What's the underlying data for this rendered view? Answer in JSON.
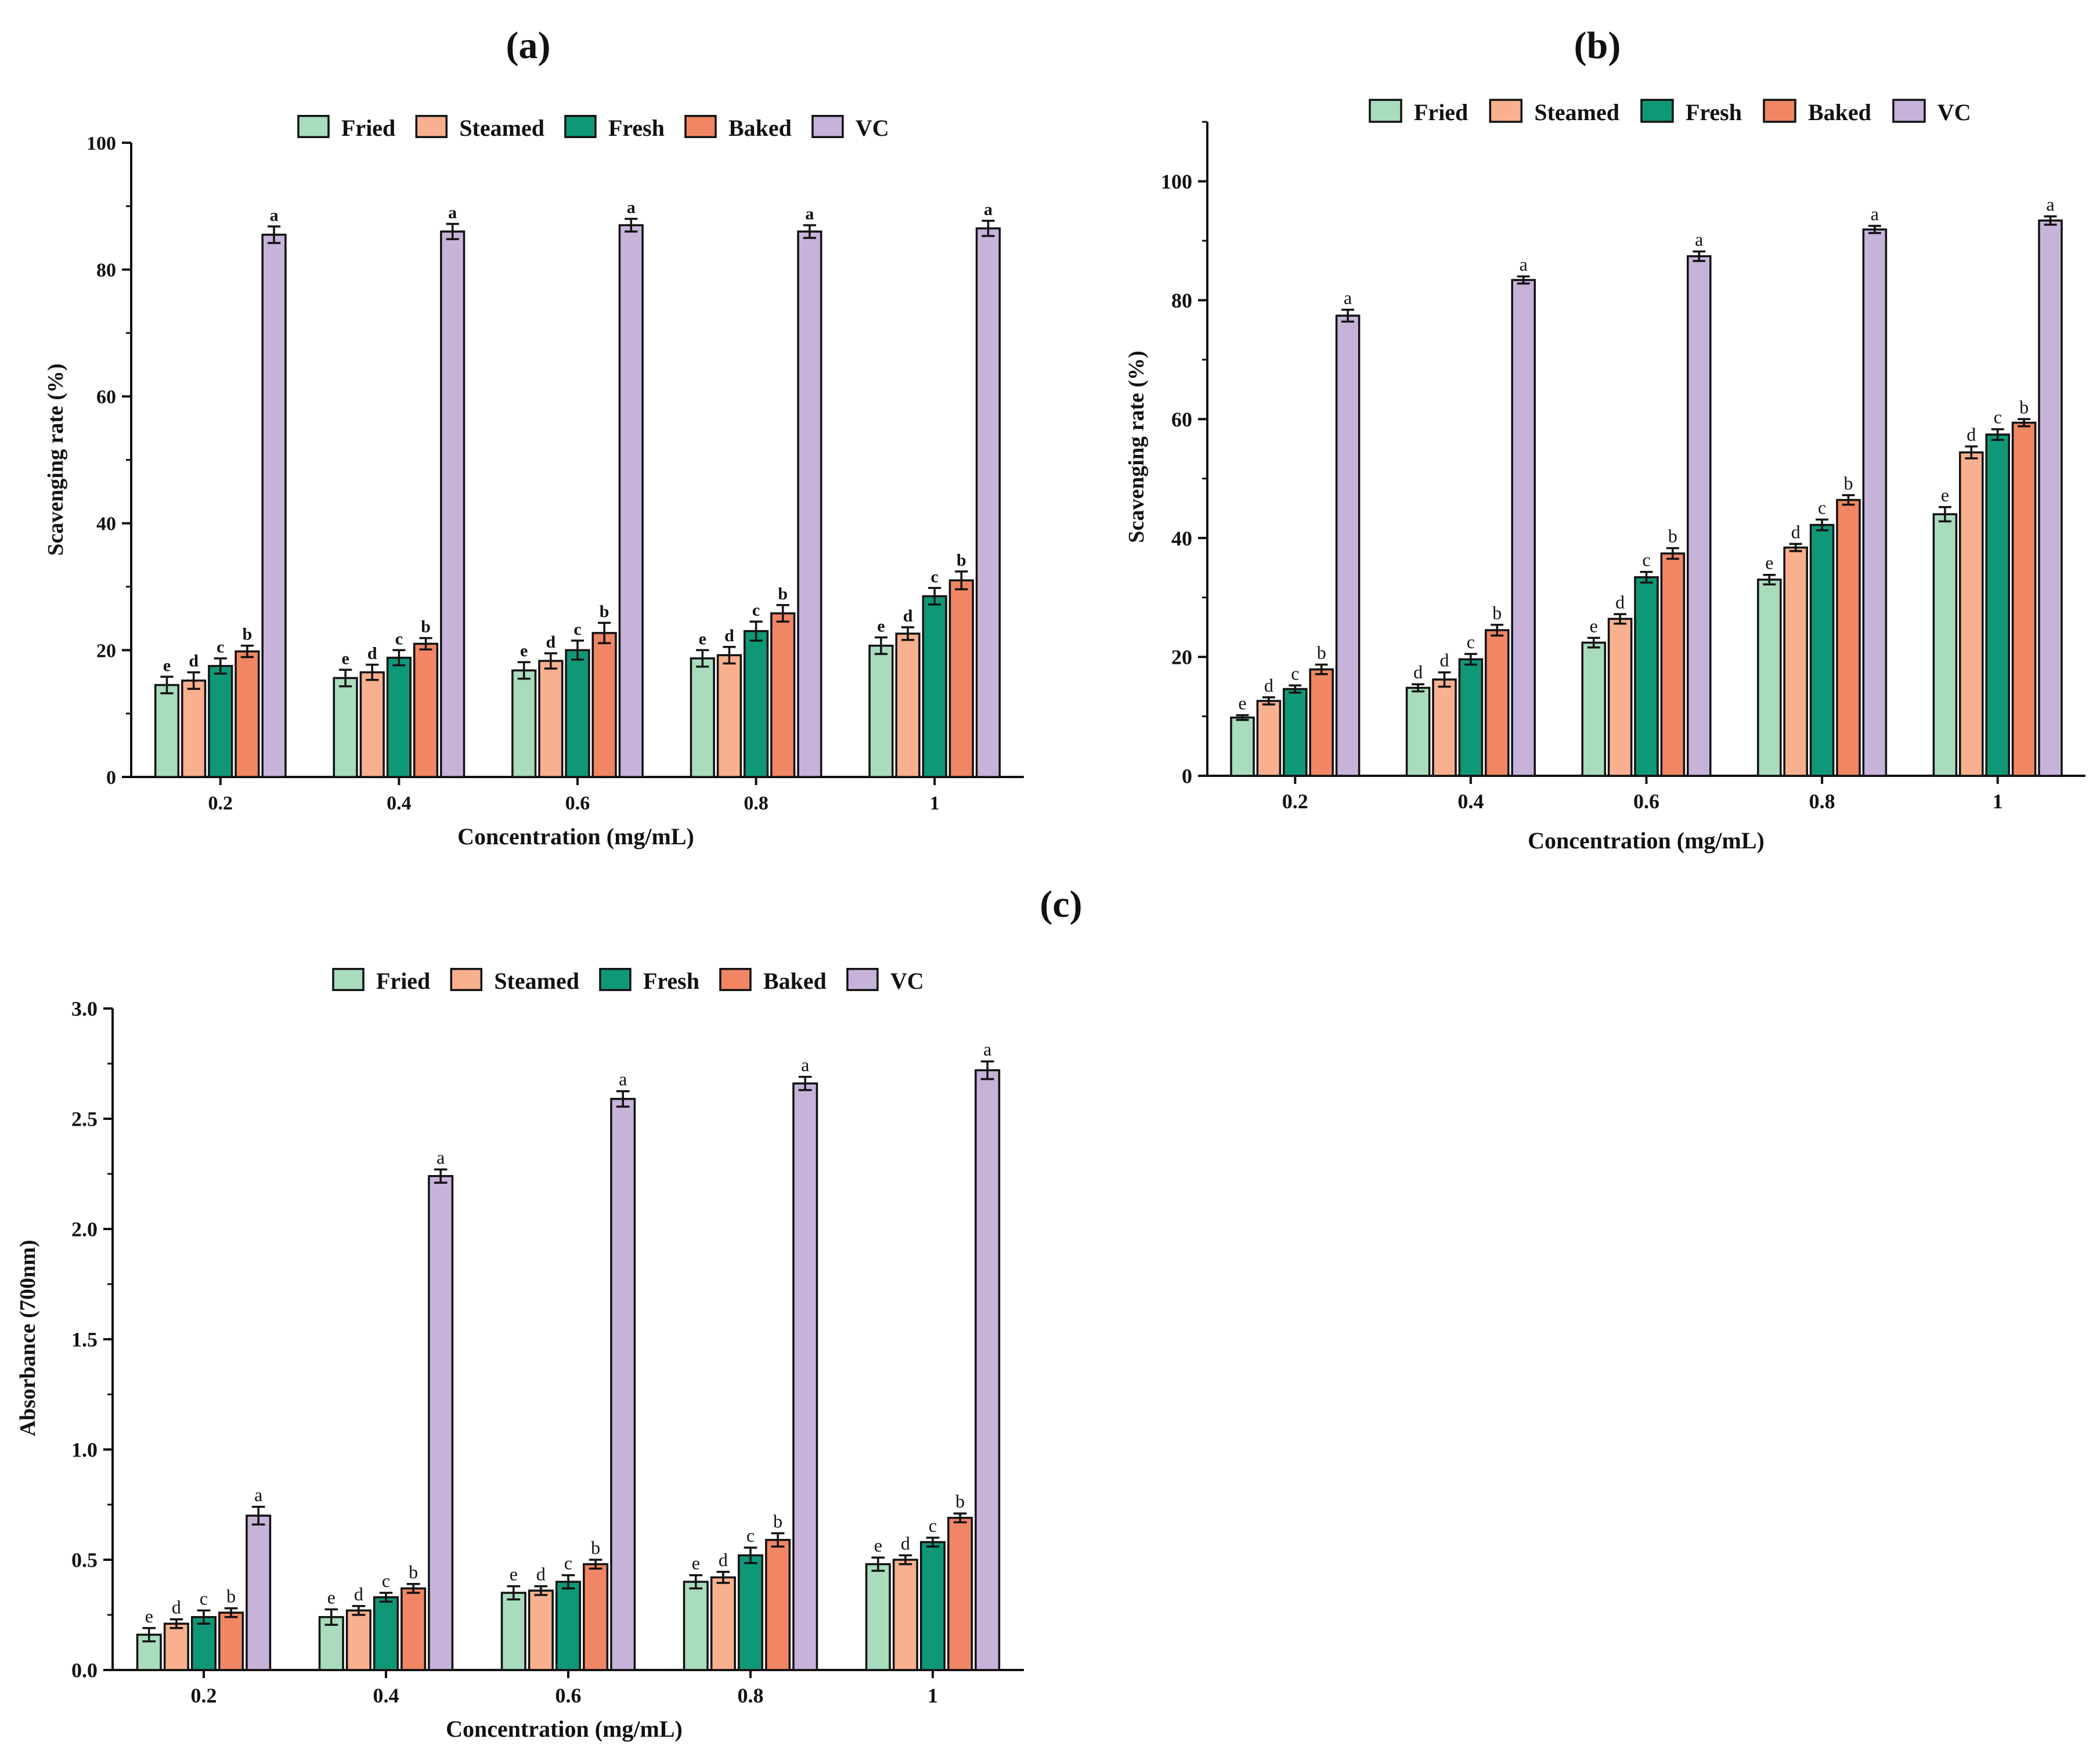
{
  "colors": {
    "Fried": "#a8dcbd",
    "Steamed": "#f9b08e",
    "Fresh": "#0f9878",
    "Baked": "#f08664",
    "VC": "#c7b3da"
  },
  "chart_data": [
    {
      "panel_label": "(a)",
      "type": "bar",
      "xlabel": "Concentration (mg/mL)",
      "ylabel": "Scavenging rate (%)",
      "ylim": [
        0,
        100
      ],
      "yticks": [
        "0",
        "20",
        "40",
        "60",
        "80",
        "100"
      ],
      "legend_position": "top-center",
      "categories": [
        "0.2",
        "0.4",
        "0.6",
        "0.8",
        "1"
      ],
      "series": [
        {
          "name": "Fried",
          "values": [
            14.5,
            15.6,
            16.8,
            18.7,
            20.7
          ],
          "errors": [
            1.3,
            1.3,
            1.3,
            1.3,
            1.3
          ],
          "letters": [
            "e",
            "e",
            "e",
            "e",
            "e"
          ]
        },
        {
          "name": "Steamed",
          "values": [
            15.2,
            16.5,
            18.3,
            19.2,
            22.6
          ],
          "errors": [
            1.3,
            1.2,
            1.2,
            1.3,
            1.0
          ],
          "letters": [
            "d",
            "d",
            "d",
            "d",
            "d"
          ]
        },
        {
          "name": "Fresh",
          "values": [
            17.5,
            18.8,
            20.0,
            23.0,
            28.5
          ],
          "errors": [
            1.2,
            1.2,
            1.5,
            1.5,
            1.3
          ],
          "letters": [
            "c",
            "c",
            "c",
            "c",
            "c"
          ]
        },
        {
          "name": "Baked",
          "values": [
            19.8,
            21.0,
            22.7,
            25.8,
            31.0
          ],
          "errors": [
            0.9,
            0.9,
            1.6,
            1.3,
            1.4
          ],
          "letters": [
            "b",
            "b",
            "b",
            "b",
            "b"
          ]
        },
        {
          "name": "VC",
          "values": [
            85.5,
            86.0,
            87.0,
            86.0,
            86.5
          ],
          "errors": [
            1.3,
            1.2,
            1.0,
            1.0,
            1.2
          ],
          "letters": [
            "a",
            "a",
            "a",
            "a",
            "a"
          ]
        }
      ]
    },
    {
      "panel_label": "(b)",
      "type": "bar",
      "xlabel": "Concentration (mg/mL)",
      "ylabel": "Scavenging rate (%)",
      "ylim": [
        0,
        110
      ],
      "yticks": [
        "0",
        "20",
        "40",
        "60",
        "80",
        "100"
      ],
      "legend_position": "top-center",
      "categories": [
        "0.2",
        "0.4",
        "0.6",
        "0.8",
        "1"
      ],
      "series": [
        {
          "name": "Fried",
          "values": [
            9.8,
            14.8,
            22.4,
            33.0,
            44.0
          ],
          "errors": [
            0.4,
            0.6,
            0.8,
            0.8,
            1.2
          ],
          "letters": [
            "e",
            "d",
            "e",
            "e",
            "e"
          ]
        },
        {
          "name": "Steamed",
          "values": [
            12.6,
            16.2,
            26.4,
            38.4,
            54.4
          ],
          "errors": [
            0.6,
            1.2,
            0.8,
            0.6,
            1.0
          ],
          "letters": [
            "d",
            "d",
            "d",
            "d",
            "d"
          ]
        },
        {
          "name": "Fresh",
          "values": [
            14.6,
            19.6,
            33.4,
            42.2,
            57.4
          ],
          "errors": [
            0.6,
            0.9,
            0.9,
            0.9,
            0.9
          ],
          "letters": [
            "c",
            "c",
            "c",
            "c",
            "c"
          ]
        },
        {
          "name": "Baked",
          "values": [
            17.9,
            24.5,
            37.4,
            46.4,
            59.4
          ],
          "errors": [
            0.8,
            0.9,
            0.9,
            0.8,
            0.6
          ],
          "letters": [
            "b",
            "b",
            "b",
            "b",
            "b"
          ]
        },
        {
          "name": "VC",
          "values": [
            77.4,
            83.4,
            87.4,
            91.9,
            93.4
          ],
          "errors": [
            1.0,
            0.6,
            0.8,
            0.6,
            0.7
          ],
          "letters": [
            "a",
            "a",
            "a",
            "a",
            "a"
          ]
        }
      ]
    },
    {
      "panel_label": "(c)",
      "type": "bar",
      "xlabel": "Concentration (mg/mL)",
      "ylabel": "Absorbance (700nm)",
      "ylim": [
        0,
        3.0
      ],
      "yticks": [
        "0.0",
        "0.5",
        "1.0",
        "1.5",
        "2.0",
        "2.5",
        "3.0"
      ],
      "legend_position": "top-center",
      "categories": [
        "0.2",
        "0.4",
        "0.6",
        "0.8",
        "1"
      ],
      "series": [
        {
          "name": "Fried",
          "values": [
            0.16,
            0.24,
            0.35,
            0.4,
            0.48
          ],
          "errors": [
            0.03,
            0.035,
            0.03,
            0.03,
            0.03
          ],
          "letters": [
            "e",
            "e",
            "e",
            "e",
            "e"
          ]
        },
        {
          "name": "Steamed",
          "values": [
            0.21,
            0.27,
            0.36,
            0.42,
            0.5
          ],
          "errors": [
            0.02,
            0.02,
            0.02,
            0.025,
            0.02
          ],
          "letters": [
            "d",
            "d",
            "d",
            "d",
            "d"
          ]
        },
        {
          "name": "Fresh",
          "values": [
            0.24,
            0.33,
            0.4,
            0.52,
            0.58
          ],
          "errors": [
            0.03,
            0.02,
            0.03,
            0.035,
            0.02
          ],
          "letters": [
            "c",
            "c",
            "c",
            "c",
            "c"
          ]
        },
        {
          "name": "Baked",
          "values": [
            0.26,
            0.37,
            0.48,
            0.59,
            0.69
          ],
          "errors": [
            0.02,
            0.02,
            0.02,
            0.03,
            0.02
          ],
          "letters": [
            "b",
            "b",
            "b",
            "b",
            "b"
          ]
        },
        {
          "name": "VC",
          "values": [
            0.7,
            2.24,
            2.59,
            2.66,
            2.72
          ],
          "errors": [
            0.04,
            0.03,
            0.035,
            0.03,
            0.04
          ],
          "letters": [
            "a",
            "a",
            "a",
            "a",
            "a"
          ]
        }
      ]
    }
  ]
}
